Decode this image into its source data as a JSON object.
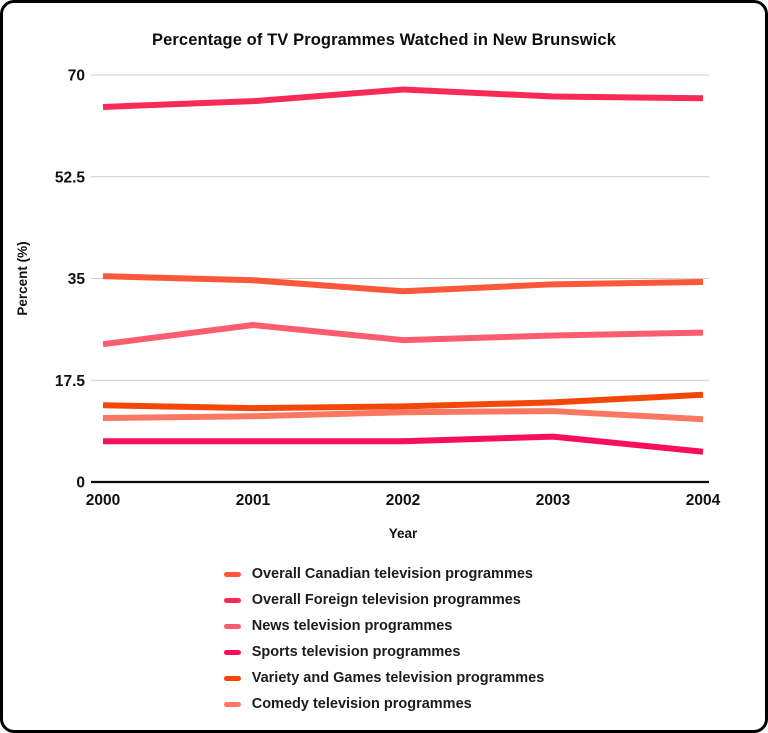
{
  "frame": {
    "background_color": "#ffffff",
    "border_color": "#000000"
  },
  "chart_data": {
    "type": "line",
    "title": "Percentage of TV Programmes Watched in New Brunswick",
    "xlabel": "Year",
    "ylabel": "Percent (%)",
    "x": [
      2000,
      2001,
      2002,
      2003,
      2004
    ],
    "ylim": [
      0,
      70
    ],
    "yticks": [
      0,
      17.5,
      35,
      52.5,
      70
    ],
    "grid": "horizontal-only",
    "legend_position": "bottom",
    "gridline_color": "#cccccc",
    "axis_line_color": "#0a0a0a",
    "series": [
      {
        "name": "Overall Canadian television programmes",
        "color": "#FA573B",
        "values": [
          35.4,
          34.7,
          32.8,
          34.0,
          34.4
        ]
      },
      {
        "name": "Overall Foreign television programmes",
        "color": "#F92B56",
        "values": [
          64.5,
          65.5,
          67.5,
          66.3,
          66.0
        ]
      },
      {
        "name": "News television programmes",
        "color": "#FB5D6F",
        "values": [
          23.7,
          27.0,
          24.4,
          25.2,
          25.7
        ]
      },
      {
        "name": "Sports television programmes",
        "color": "#F70F5C",
        "values": [
          7.0,
          7.0,
          7.0,
          7.8,
          5.2
        ]
      },
      {
        "name": "Variety and Games television programmes",
        "color": "#F24708",
        "values": [
          13.2,
          12.7,
          13.0,
          13.7,
          15.0
        ]
      },
      {
        "name": "Comedy television programmes",
        "color": "#FA7862",
        "values": [
          11.0,
          11.3,
          12.0,
          12.2,
          10.8
        ]
      }
    ]
  }
}
